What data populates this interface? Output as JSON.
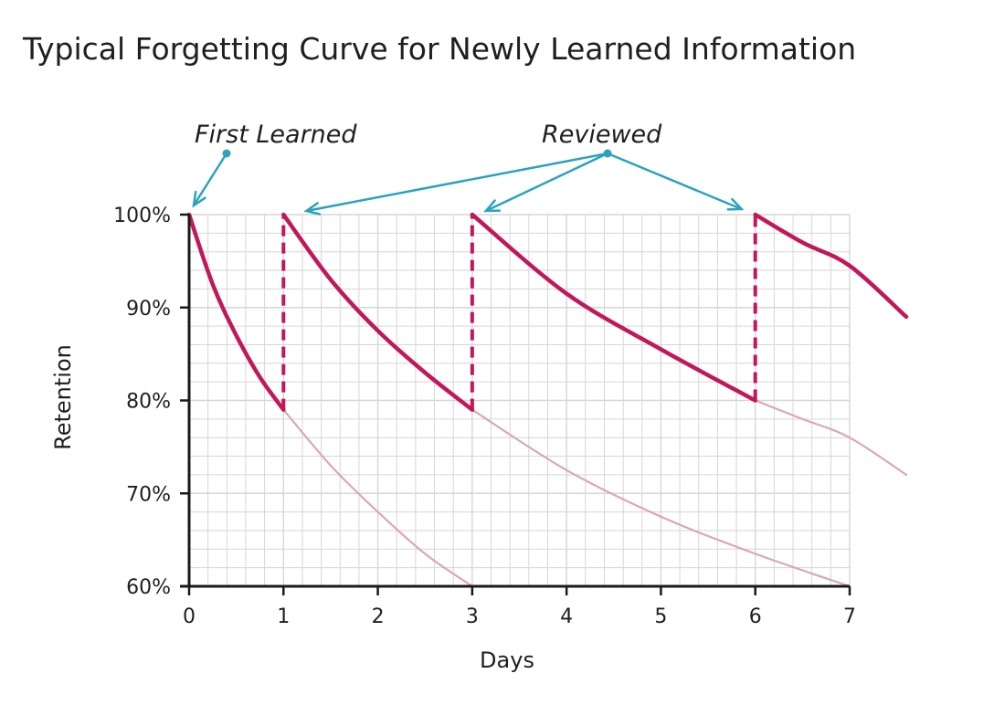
{
  "chart_data": {
    "type": "line",
    "title": "Typical Forgetting Curve for Newly Learned Information",
    "xlabel": "Days",
    "ylabel": "Retention",
    "xlim": [
      0,
      7
    ],
    "ylim": [
      60,
      100
    ],
    "x_ticks": [
      "0",
      "1",
      "2",
      "3",
      "4",
      "5",
      "6",
      "7"
    ],
    "y_ticks": [
      "60%",
      "70%",
      "80%",
      "90%",
      "100%"
    ],
    "grid": true,
    "annotations": [
      {
        "text": "First Learned",
        "points_to_day": 0
      },
      {
        "text": "Reviewed",
        "points_to_days": [
          1,
          3,
          6
        ]
      }
    ],
    "review_drops": [
      {
        "day": 1,
        "from": 79,
        "to": 100
      },
      {
        "day": 3,
        "from": 79,
        "to": 100
      },
      {
        "day": 6,
        "from": 80,
        "to": 100
      }
    ],
    "series": [
      {
        "role": "retention",
        "points": [
          [
            0,
            100
          ],
          [
            0.25,
            92.5
          ],
          [
            0.5,
            87
          ],
          [
            0.75,
            82.5
          ],
          [
            1,
            79
          ]
        ]
      },
      {
        "role": "retention",
        "points": [
          [
            1,
            100
          ],
          [
            1.5,
            93
          ],
          [
            2,
            87.5
          ],
          [
            2.5,
            83
          ],
          [
            3,
            79
          ]
        ]
      },
      {
        "role": "retention",
        "points": [
          [
            3,
            100
          ],
          [
            4,
            91.5
          ],
          [
            5,
            85.5
          ],
          [
            6,
            80
          ]
        ]
      },
      {
        "role": "retention",
        "points": [
          [
            6,
            100
          ],
          [
            6.5,
            97
          ],
          [
            7,
            94.5
          ],
          [
            7.6,
            89
          ]
        ]
      },
      {
        "role": "decay_without_review",
        "points": [
          [
            1,
            79
          ],
          [
            1.5,
            73
          ],
          [
            2,
            68
          ],
          [
            2.5,
            63.5
          ],
          [
            3,
            60
          ]
        ]
      },
      {
        "role": "decay_without_review",
        "points": [
          [
            3,
            79
          ],
          [
            4,
            72.5
          ],
          [
            5,
            67.5
          ],
          [
            6,
            63.5
          ],
          [
            7,
            60
          ]
        ]
      },
      {
        "role": "decay_without_review",
        "points": [
          [
            6,
            80
          ],
          [
            6.5,
            78
          ],
          [
            7,
            76
          ],
          [
            7.6,
            72
          ]
        ]
      }
    ],
    "colors": {
      "retention": "#c2185b",
      "decay_without_review": "#d9a7b6",
      "arrows": "#2ba3bf",
      "grid": "#d6d6d6",
      "axis": "#1a1a1a"
    }
  }
}
